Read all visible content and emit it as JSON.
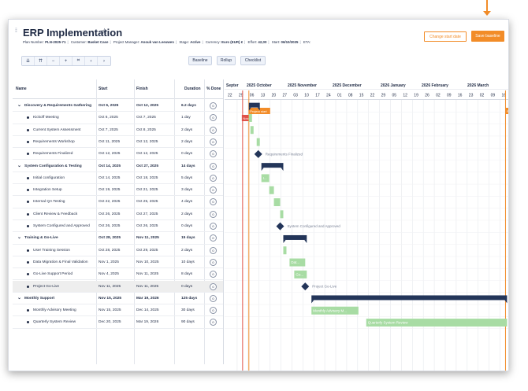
{
  "header": {
    "title": "ERP Implementation",
    "meta": {
      "plan_label": "Plan Number:",
      "plan": "PLN-2025-71",
      "customer_label": "Customer:",
      "customer": "Basket Case",
      "pm_label": "Project Manager:",
      "pm": "Anouk van Leeuwen",
      "stage_label": "Stage:",
      "stage": "Active",
      "currency_label": "Currency:",
      "currency": "Euro (EUR) €",
      "effort_label": "Effort:",
      "effort": "42,00",
      "start_label": "Start:",
      "start": "06/10/2025",
      "eta_label": "ETA:"
    },
    "change_start_label": "Change start date",
    "save_baseline_label": "Save baseline"
  },
  "toolbar": {
    "icons": [
      "collapse-all-icon",
      "expand-all-icon",
      "zoom-out-icon",
      "zoom-in-icon",
      "fit-icon",
      "prev-icon",
      "next-icon"
    ],
    "glyphs": [
      "⇊",
      "⇈",
      "−",
      "+",
      "⌗",
      "‹",
      "›"
    ],
    "baseline_label": "Baseline",
    "rollup_label": "Rollup",
    "checklist_label": "Checklist"
  },
  "columns": {
    "name": "Name",
    "start": "Start",
    "finish": "Finish",
    "duration": "Duration",
    "done": "% Done"
  },
  "rows": [
    {
      "name": "Discovery & Requirements Gathering",
      "start": "Oct 6, 2025",
      "finish": "Oct 12, 2025",
      "duration": "6.2 days",
      "done": "0",
      "summary": true
    },
    {
      "name": "Kickoff Meeting",
      "start": "Oct 6, 2025",
      "finish": "Oct 7, 2025",
      "duration": "1 day",
      "done": "0"
    },
    {
      "name": "Current System Assessment",
      "start": "Oct 7, 2025",
      "finish": "Oct 8, 2025",
      "duration": "2 days",
      "done": "0"
    },
    {
      "name": "Requirements Workshop",
      "start": "Oct 11, 2025",
      "finish": "Oct 12, 2025",
      "duration": "2 days",
      "done": "0"
    },
    {
      "name": "Requirements Finalized",
      "start": "Oct 12, 2025",
      "finish": "Oct 12, 2025",
      "duration": "0 days",
      "done": "0"
    },
    {
      "name": "System Configuration & Testing",
      "start": "Oct 14, 2025",
      "finish": "Oct 27, 2025",
      "duration": "14 days",
      "done": "0",
      "summary": true
    },
    {
      "name": "Initial configuration",
      "start": "Oct 14, 2025",
      "finish": "Oct 18, 2025",
      "duration": "5 days",
      "done": "0"
    },
    {
      "name": "Integration Setup",
      "start": "Oct 19, 2025",
      "finish": "Oct 21, 2025",
      "duration": "3 days",
      "done": "0"
    },
    {
      "name": "Internal QA Testing",
      "start": "Oct 22, 2025",
      "finish": "Oct 25, 2025",
      "duration": "4 days",
      "done": "0"
    },
    {
      "name": "Client Review & Feedback",
      "start": "Oct 26, 2025",
      "finish": "Oct 27, 2025",
      "duration": "2 days",
      "done": "0"
    },
    {
      "name": "System Configured and Approved",
      "start": "Oct 26, 2025",
      "finish": "Oct 26, 2025",
      "duration": "0 days",
      "done": "0"
    },
    {
      "name": "Training & Go-Live",
      "start": "Oct 28, 2025",
      "finish": "Nov 11, 2025",
      "duration": "15 days",
      "done": "0",
      "summary": true
    },
    {
      "name": "User Training Session",
      "start": "Oct 28, 2025",
      "finish": "Oct 29, 2025",
      "duration": "2 days",
      "done": "0"
    },
    {
      "name": "Data Migration & Final Validation",
      "start": "Nov 1, 2025",
      "finish": "Nov 10, 2025",
      "duration": "10 days",
      "done": "0"
    },
    {
      "name": "Go-Live Support Period",
      "start": "Nov 4, 2025",
      "finish": "Nov 11, 2025",
      "duration": "8 days",
      "done": "0"
    },
    {
      "name": "Project Go-Live",
      "start": "Nov 11, 2025",
      "finish": "Nov 11, 2025",
      "duration": "0 days",
      "done": "0",
      "selected": true
    },
    {
      "name": "Monthly Support",
      "start": "Nov 15, 2025",
      "finish": "Mar 19, 2026",
      "duration": "125 days",
      "done": "0",
      "summary": true
    },
    {
      "name": "Monthly Advisory Meeting",
      "start": "Nov 15, 2025",
      "finish": "Dec 14, 2025",
      "duration": "30 days",
      "done": "0"
    },
    {
      "name": "Quarterly System Review",
      "start": "Dec 20, 2025",
      "finish": "Mar 19, 2026",
      "duration": "90 days",
      "done": "0"
    }
  ],
  "timeline": {
    "months": [
      "Septer",
      "2025 October",
      "2025 November",
      "2025 December",
      "2026 January",
      "2026 February",
      "2026 March"
    ],
    "weeks": [
      "22",
      "29",
      "06",
      "13",
      "20",
      "27",
      "03",
      "10",
      "17",
      "24",
      "01",
      "08",
      "15",
      "22",
      "29",
      "05",
      "12",
      "19",
      "26",
      "02",
      "09",
      "16",
      "23",
      "02",
      "09",
      "16"
    ],
    "first_week_start": "2025-09-22",
    "now_label": "Now",
    "project_start_label": "Project start",
    "project_end_label": "Project end",
    "bars": [
      {
        "row": 0,
        "type": "summary",
        "start": "2025-10-06",
        "end": "2025-10-12"
      },
      {
        "row": 1,
        "type": "task",
        "start": "2025-10-06",
        "end": "2025-10-07",
        "label": ""
      },
      {
        "row": 2,
        "type": "task",
        "start": "2025-10-07",
        "end": "2025-10-08",
        "label": ""
      },
      {
        "row": 3,
        "type": "task",
        "start": "2025-10-11",
        "end": "2025-10-12",
        "label": ""
      },
      {
        "row": 4,
        "type": "milestone",
        "start": "2025-10-12",
        "label": "Requirements Finalized"
      },
      {
        "row": 5,
        "type": "summary",
        "start": "2025-10-14",
        "end": "2025-10-27"
      },
      {
        "row": 6,
        "type": "task",
        "start": "2025-10-14",
        "end": "2025-10-18",
        "label": "I..."
      },
      {
        "row": 7,
        "type": "task",
        "start": "2025-10-19",
        "end": "2025-10-21",
        "label": ""
      },
      {
        "row": 8,
        "type": "task",
        "start": "2025-10-22",
        "end": "2025-10-25",
        "label": ""
      },
      {
        "row": 9,
        "type": "task",
        "start": "2025-10-26",
        "end": "2025-10-27",
        "label": ""
      },
      {
        "row": 10,
        "type": "milestone",
        "start": "2025-10-26",
        "label": "System Configured and Approved"
      },
      {
        "row": 11,
        "type": "summary",
        "start": "2025-10-28",
        "end": "2025-11-11"
      },
      {
        "row": 12,
        "type": "task",
        "start": "2025-10-28",
        "end": "2025-10-29",
        "label": ""
      },
      {
        "row": 13,
        "type": "task",
        "start": "2025-11-01",
        "end": "2025-11-10",
        "label": "Dat..."
      },
      {
        "row": 14,
        "type": "task",
        "start": "2025-11-04",
        "end": "2025-11-11",
        "label": "Go..."
      },
      {
        "row": 15,
        "type": "milestone",
        "start": "2025-11-11",
        "label": "Project Go-Live"
      },
      {
        "row": 16,
        "type": "summary",
        "start": "2025-11-15",
        "end": "2026-03-19"
      },
      {
        "row": 17,
        "type": "task",
        "start": "2025-11-15",
        "end": "2025-12-14",
        "label": "Monthly Advisory M..."
      },
      {
        "row": 18,
        "type": "task",
        "start": "2025-12-20",
        "end": "2026-03-19",
        "label": "Quarterly System Review"
      }
    ],
    "now_date": "2025-10-02",
    "project_start_date": "2025-10-06",
    "project_end_date": "2026-03-19"
  },
  "colors": {
    "accent": "#f28c28",
    "summary_bar": "#233559",
    "task_bar": "#a8dca4",
    "milestone": "#233559",
    "now_line": "#e0524a",
    "grid": "#e6e8ec"
  }
}
